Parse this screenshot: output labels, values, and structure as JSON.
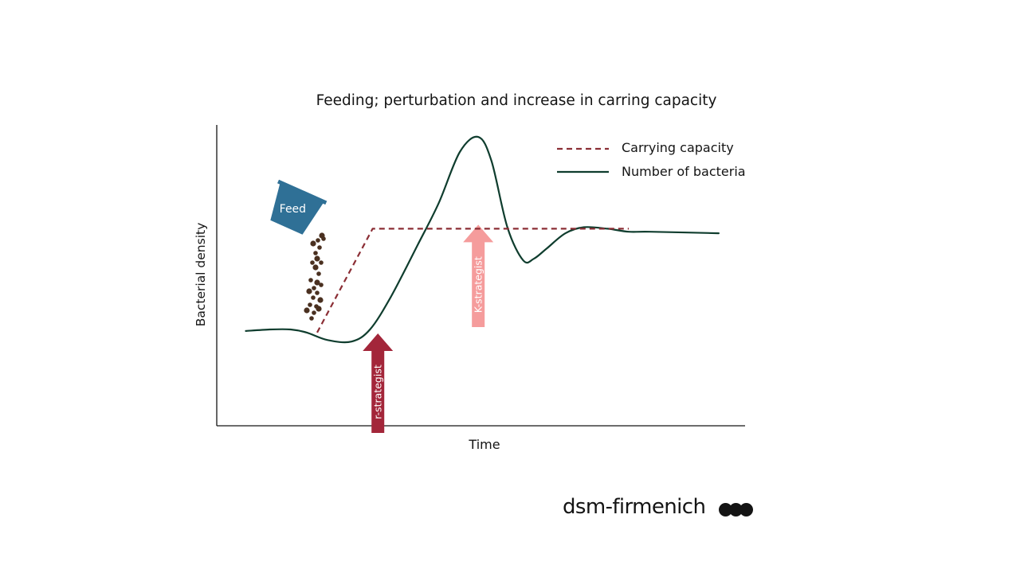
{
  "chart_data": {
    "type": "line",
    "title": "Feeding; perturbation and increase in carring capacity",
    "xlabel": "Time",
    "ylabel": "Bacterial density",
    "xlim": [
      0,
      100
    ],
    "ylim": [
      0,
      100
    ],
    "grid": false,
    "legend": "top-right",
    "series": [
      {
        "name": "Carrying capacity",
        "style": "dashed",
        "color": "#8b2e35",
        "x": [
          19,
          29.5,
          78
        ],
        "y": [
          31,
          65.5,
          65.5
        ]
      },
      {
        "name": "Number of bacteria",
        "style": "solid",
        "color": "#0f3d2e",
        "x": [
          5.5,
          10,
          14,
          17,
          21,
          25.5,
          29,
          33,
          38,
          42,
          46,
          49.5,
          52,
          55,
          58,
          60,
          62.5,
          66,
          69.5,
          74,
          78,
          82,
          95
        ],
        "y": [
          31.5,
          32,
          32,
          31,
          28.5,
          28,
          32,
          43,
          60,
          74,
          91,
          96,
          88,
          66,
          55,
          55.5,
          59,
          64,
          66,
          65.5,
          64.5,
          64.5,
          64
        ]
      }
    ],
    "annotations": [
      {
        "kind": "arrow",
        "label": "r-strategist",
        "x": 30.5,
        "color": "#a3263a"
      },
      {
        "kind": "arrow",
        "label": "K-strategist",
        "x": 49.5,
        "color": "#f59c9c"
      },
      {
        "kind": "bucket",
        "label": "Feed",
        "color": "#2f7096"
      }
    ]
  },
  "brand": {
    "logo_text": "dsm-firmenich"
  },
  "colors": {
    "axis": "#141414",
    "pellets": "#4a3020"
  }
}
